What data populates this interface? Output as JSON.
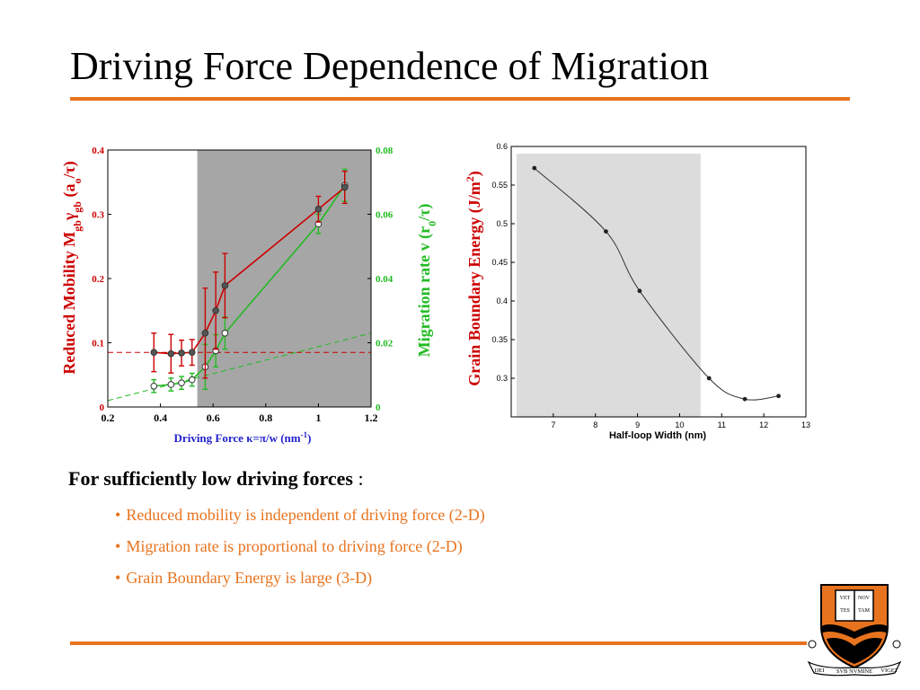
{
  "slide": {
    "title": "Driving Force Dependence of Migration",
    "intro_bold": "For sufficiently low driving forces",
    "intro_colon": " :",
    "bullets": [
      "Reduced mobility is independent of driving force (2-D)",
      "Migration rate is proportional to driving force (2-D)",
      "Grain Boundary Energy is large (3-D)"
    ],
    "colors": {
      "accent": "#e8731e",
      "red": "#cc0000",
      "green": "#22bb22",
      "blue": "#2222cc"
    }
  },
  "logo": {
    "book_text": [
      "VET",
      "NOV",
      "TES",
      "TAM"
    ],
    "ribbon_left": "DEI",
    "ribbon_center": "SVB NVMINE",
    "ribbon_right": "VIGET"
  },
  "chart_data": [
    {
      "type": "line",
      "xlabel_prefix": "Driving Force ",
      "xlabel_kappa": "κ",
      "xlabel_mid": "=",
      "xlabel_pi": "π",
      "xlabel_suffix": "/w  (nm",
      "xlabel_sup": "-1",
      "xlabel_end": ")",
      "ylabel_left_main": "Reduced Mobility M",
      "ylabel_left_sub1": "gb",
      "ylabel_left_gamma": "γ",
      "ylabel_left_sub2": "gb",
      "ylabel_left_mid": " (a",
      "ylabel_left_sub3": "o",
      "ylabel_left_tau": "/τ)",
      "ylabel_right_main": "Migration rate v  (r",
      "ylabel_right_sub": "0",
      "ylabel_right_tau": "/τ)",
      "xlim": [
        0.2,
        1.2
      ],
      "ylim_left": [
        0,
        0.4
      ],
      "ylim_right": [
        0,
        0.08
      ],
      "x_ticks": [
        "0.2",
        "0.4",
        "0.6",
        "0.8",
        "1",
        "1.2"
      ],
      "y_left_ticks": [
        "0",
        "0.1",
        "0.2",
        "0.3",
        "0.4"
      ],
      "y_right_ticks": [
        "0",
        "0.02",
        "0.04",
        "0.06",
        "0.08"
      ],
      "shaded_region": [
        0.54,
        1.2
      ],
      "series": [
        {
          "axis": "left",
          "x": [
            0.375,
            0.44,
            0.48,
            0.52,
            0.57,
            0.61,
            0.645,
            1.0,
            1.1
          ],
          "y": [
            0.085,
            0.083,
            0.084,
            0.085,
            0.115,
            0.15,
            0.189,
            0.308,
            0.342
          ],
          "err": [
            0.03,
            0.03,
            0.02,
            0.02,
            0.07,
            0.06,
            0.05,
            0.02,
            0.025
          ]
        },
        {
          "axis": "right",
          "x": [
            0.375,
            0.44,
            0.48,
            0.52,
            0.57,
            0.61,
            0.645,
            1.0,
            1.1
          ],
          "y": [
            0.0065,
            0.007,
            0.0075,
            0.0085,
            0.0125,
            0.0175,
            0.023,
            0.057,
            0.069
          ],
          "err": [
            0.002,
            0.002,
            0.002,
            0.002,
            0.007,
            0.005,
            0.005,
            0.003,
            0.005
          ]
        }
      ],
      "reference_lines": [
        {
          "axis": "left",
          "y": 0.085
        },
        {
          "axis": "right",
          "x": [
            0.2,
            1.2
          ],
          "y": [
            0.002,
            0.023
          ]
        }
      ]
    },
    {
      "type": "line",
      "xlabel": "Half-loop Width (nm)",
      "ylabel_main": "Grain Boundary Energy (J/m",
      "ylabel_sup": "2",
      "ylabel_end": ")",
      "xlim": [
        6,
        13
      ],
      "ylim": [
        0.25,
        0.6
      ],
      "x_ticks": [
        "7",
        "8",
        "9",
        "10",
        "11",
        "12",
        "13"
      ],
      "y_ticks": [
        "0.3",
        "0.35",
        "0.4",
        "0.45",
        "0.5",
        "0.55",
        "0.6"
      ],
      "shaded_region": [
        6,
        10.5
      ],
      "series": [
        {
          "x": [
            6.55,
            8.25,
            9.05,
            10.7,
            11.55,
            12.35
          ],
          "y": [
            0.572,
            0.49,
            0.413,
            0.3,
            0.273,
            0.277
          ]
        }
      ]
    }
  ]
}
